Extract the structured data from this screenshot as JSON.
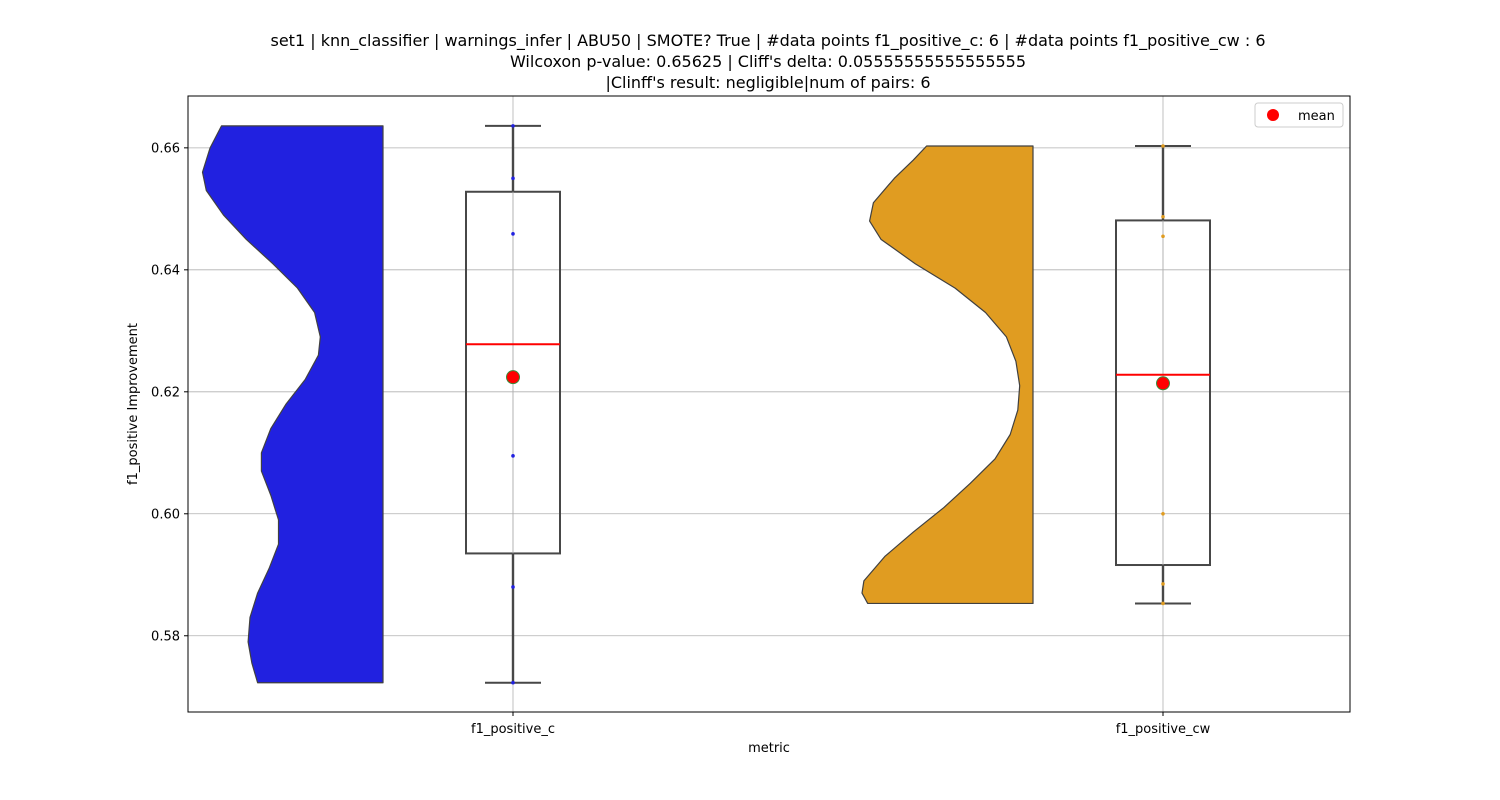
{
  "chart_data": {
    "type": "violin-box",
    "title_lines": [
      "set1 | knn_classifier | warnings_infer | ABU50 | SMOTE? True | #data points f1_positive_c: 6 | #data points f1_positive_cw : 6",
      "Wilcoxon p-value: 0.65625 | Cliff's delta: 0.05555555555555555",
      "|Clinff's result: negligible|num of pairs: 6"
    ],
    "xlabel": "metric",
    "ylabel": "f1_positive Improvement",
    "categories": [
      "f1_positive_c",
      "f1_positive_cw"
    ],
    "ylim": [
      0.5675,
      0.6685
    ],
    "yticks": [
      0.58,
      0.6,
      0.62,
      0.64,
      0.66
    ],
    "ytick_labels": [
      "0.58",
      "0.60",
      "0.62",
      "0.64",
      "0.66"
    ],
    "grid": true,
    "legend": {
      "position": "upper right",
      "entries": [
        {
          "label": "mean",
          "color": "#ff0000"
        }
      ]
    },
    "series": [
      {
        "category": "f1_positive_c",
        "violin_color": "#2121e0",
        "point_color": "#2121e0",
        "points": [
          0.6636,
          0.655,
          0.6459,
          0.6095,
          0.588,
          0.5723
        ],
        "box": {
          "whisker_low": 0.5723,
          "q1": 0.5935,
          "median": 0.6278,
          "q3": 0.6528,
          "whisker_high": 0.6636
        },
        "mean": 0.6224,
        "density": [
          [
            0.5723,
            0.66
          ],
          [
            0.5755,
            0.69
          ],
          [
            0.579,
            0.71
          ],
          [
            0.583,
            0.7
          ],
          [
            0.587,
            0.66
          ],
          [
            0.591,
            0.6
          ],
          [
            0.595,
            0.55
          ],
          [
            0.599,
            0.55
          ],
          [
            0.603,
            0.59
          ],
          [
            0.607,
            0.64
          ],
          [
            0.61,
            0.64
          ],
          [
            0.614,
            0.59
          ],
          [
            0.618,
            0.51
          ],
          [
            0.622,
            0.41
          ],
          [
            0.626,
            0.34
          ],
          [
            0.629,
            0.33
          ],
          [
            0.633,
            0.36
          ],
          [
            0.637,
            0.45
          ],
          [
            0.641,
            0.58
          ],
          [
            0.645,
            0.72
          ],
          [
            0.649,
            0.84
          ],
          [
            0.653,
            0.93
          ],
          [
            0.656,
            0.95
          ],
          [
            0.66,
            0.91
          ],
          [
            0.6636,
            0.85
          ]
        ]
      },
      {
        "category": "f1_positive_cw",
        "violin_color": "#e09c21",
        "point_color": "#e09c21",
        "points": [
          0.6603,
          0.6487,
          0.6455,
          0.6,
          0.5885,
          0.5853
        ],
        "box": {
          "whisker_low": 0.5853,
          "q1": 0.5916,
          "median": 0.6228,
          "q3": 0.6481,
          "whisker_high": 0.6603
        },
        "mean": 0.6214,
        "density": [
          [
            0.5853,
            0.87
          ],
          [
            0.587,
            0.9
          ],
          [
            0.589,
            0.89
          ],
          [
            0.593,
            0.78
          ],
          [
            0.597,
            0.63
          ],
          [
            0.601,
            0.47
          ],
          [
            0.605,
            0.33
          ],
          [
            0.609,
            0.2
          ],
          [
            0.613,
            0.12
          ],
          [
            0.617,
            0.08
          ],
          [
            0.621,
            0.07
          ],
          [
            0.625,
            0.09
          ],
          [
            0.629,
            0.14
          ],
          [
            0.633,
            0.25
          ],
          [
            0.637,
            0.41
          ],
          [
            0.641,
            0.62
          ],
          [
            0.645,
            0.8
          ],
          [
            0.648,
            0.86
          ],
          [
            0.651,
            0.84
          ],
          [
            0.655,
            0.73
          ],
          [
            0.658,
            0.63
          ],
          [
            0.6603,
            0.56
          ]
        ]
      }
    ]
  }
}
